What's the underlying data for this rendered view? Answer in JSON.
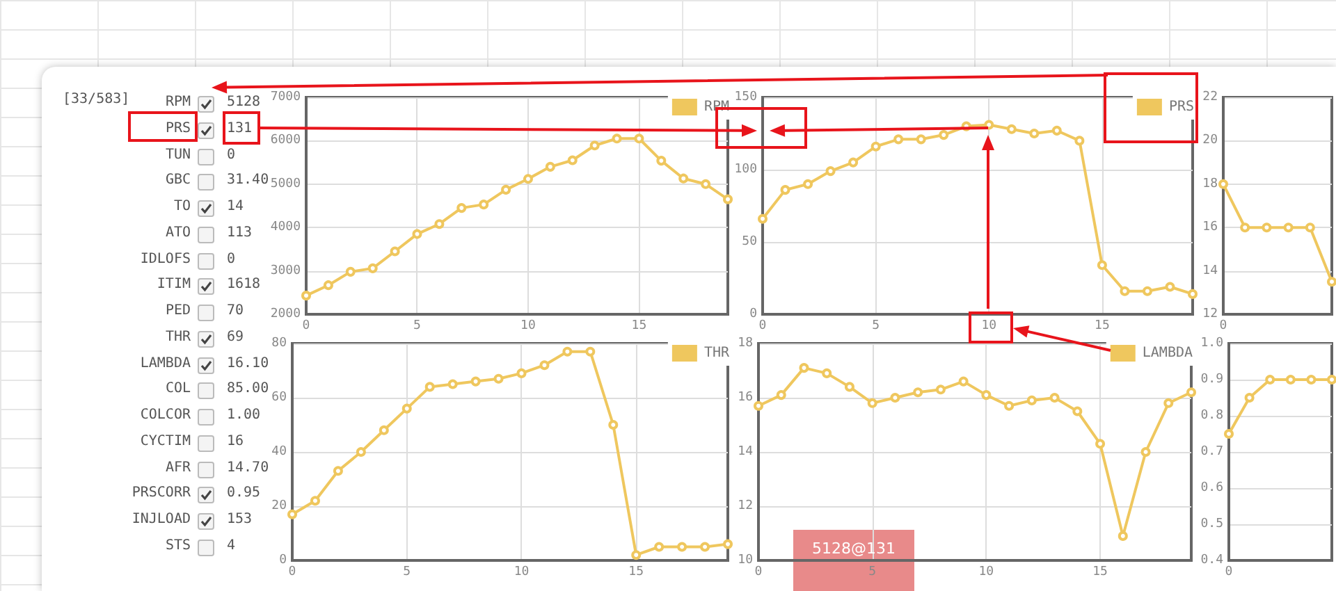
{
  "chart_data": [
    {
      "type": "other",
      "title": "[33/583]",
      "categories": [
        "RPM",
        "PRS",
        "TUN",
        "GBC",
        "TO",
        "ATO",
        "IDLOFS",
        "ITIM",
        "PED",
        "THR",
        "LAMBDA",
        "COL",
        "COLCOR",
        "CYCTIM",
        "AFR",
        "PRSCORR",
        "INJLOAD",
        "STS"
      ],
      "annotations": [
        "5128",
        "131",
        "0",
        "31.40",
        "14",
        "113",
        "0",
        "1618",
        "70",
        "69",
        "16.10",
        "85.00",
        "1.00",
        "16",
        "14.70",
        "0.95",
        "153",
        "4"
      ]
    },
    {
      "type": "line",
      "x": [
        0,
        1,
        2,
        3,
        4,
        5,
        6,
        7,
        8,
        9,
        10,
        11,
        12,
        13,
        14,
        15,
        16,
        17,
        18,
        19
      ],
      "xlim": [
        0,
        19
      ],
      "xticks": [
        0,
        5,
        10,
        15
      ],
      "ylim": [
        2000,
        7000
      ],
      "yticks": [
        2000,
        3000,
        4000,
        5000,
        6000,
        7000
      ],
      "grid": true,
      "legend": "top right",
      "marker": "circle",
      "series": [
        {
          "name": "RPM",
          "color": "#efc75e",
          "values": [
            2430,
            2670,
            2980,
            3060,
            3450,
            3850,
            4080,
            4450,
            4530,
            4870,
            5120,
            5400,
            5550,
            5890,
            6050,
            6050,
            5540,
            5130,
            5000,
            4650
          ]
        }
      ]
    },
    {
      "type": "line",
      "x": [
        0,
        1,
        2,
        3,
        4,
        5,
        6,
        7,
        8,
        9,
        10,
        11,
        12,
        13,
        14,
        15,
        16,
        17,
        18,
        19
      ],
      "xlim": [
        0,
        19
      ],
      "xticks": [
        0,
        5,
        10,
        15
      ],
      "ylim": [
        0,
        150
      ],
      "yticks": [
        0,
        50,
        100,
        150
      ],
      "grid": true,
      "legend": "top right",
      "marker": "circle",
      "series": [
        {
          "name": "PRS",
          "color": "#efc75e",
          "values": [
            66,
            86,
            90,
            99,
            105,
            116,
            121,
            121,
            124,
            130,
            131,
            128,
            125,
            127,
            120,
            34,
            16,
            16,
            19,
            14
          ]
        }
      ]
    },
    {
      "type": "line",
      "categories": [
        "0",
        null,
        null,
        null,
        null,
        null
      ],
      "ylim": [
        12,
        22
      ],
      "yticks": [
        12,
        14,
        16,
        18,
        20,
        22
      ],
      "grid": "y",
      "marker": "circle",
      "series": [
        {
          "color": "#efc75e",
          "values": [
            18,
            16,
            16,
            16,
            16,
            13.5
          ]
        }
      ]
    },
    {
      "type": "line",
      "x": [
        0,
        1,
        2,
        3,
        4,
        5,
        6,
        7,
        8,
        9,
        10,
        11,
        12,
        13,
        14,
        15,
        16,
        17,
        18,
        19
      ],
      "xlim": [
        0,
        19
      ],
      "xticks": [
        0,
        5,
        10,
        15
      ],
      "ylim": [
        0,
        80
      ],
      "yticks": [
        0,
        20,
        40,
        60,
        80
      ],
      "grid": true,
      "legend": "top right",
      "marker": "circle",
      "series": [
        {
          "name": "THR",
          "color": "#efc75e",
          "values": [
            17,
            22,
            33,
            40,
            48,
            56,
            64,
            65,
            66,
            67,
            69,
            72,
            77,
            77,
            50,
            2,
            5,
            5,
            5,
            6
          ]
        }
      ]
    },
    {
      "type": "line",
      "x": [
        0,
        1,
        2,
        3,
        4,
        5,
        6,
        7,
        8,
        9,
        10,
        11,
        12,
        13,
        14,
        15,
        16,
        17,
        18,
        19
      ],
      "xlim": [
        0,
        19
      ],
      "xticks": [
        0,
        5,
        10,
        15
      ],
      "ylim": [
        10,
        18
      ],
      "yticks": [
        10,
        12,
        14,
        16,
        18
      ],
      "grid": true,
      "legend": "top right",
      "marker": "circle",
      "annotations": [
        "5128@131"
      ],
      "series": [
        {
          "name": "LAMBDA",
          "color": "#efc75e",
          "values": [
            15.7,
            16.1,
            17.1,
            16.9,
            16.4,
            15.8,
            16.0,
            16.2,
            16.3,
            16.6,
            16.1,
            15.7,
            15.9,
            16.0,
            15.5,
            14.3,
            10.9,
            14.0,
            15.8,
            16.2
          ]
        }
      ]
    },
    {
      "type": "line",
      "categories": [
        "0",
        null,
        null,
        null,
        null,
        null
      ],
      "ylim": [
        0.4,
        1
      ],
      "yticks": [
        0.4,
        0.5,
        0.6,
        0.7,
        0.8,
        0.9,
        {
          "value": 1,
          "label": "1.0"
        }
      ],
      "grid": "y",
      "marker": "circle",
      "series": [
        {
          "color": "#efc75e",
          "values": [
            0.75,
            0.85,
            0.9,
            0.9,
            0.9,
            0.9
          ]
        }
      ]
    }
  ]
}
